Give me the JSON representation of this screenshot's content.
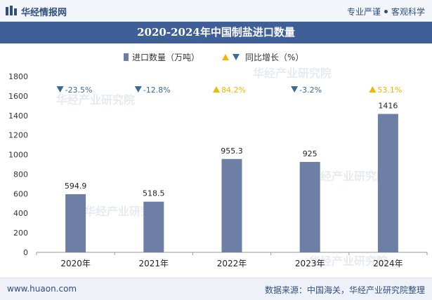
{
  "header": {
    "logo_text": "华经情报网",
    "tagline_left": "专业严谨",
    "tagline_right": "客观科学"
  },
  "watermark": "华经产业研究院",
  "footer": {
    "website": "www.huaon.com",
    "source": "数据来源：中国海关，华经产业研究院整理"
  },
  "colors": {
    "bar": "#6e7fa6",
    "title_band": "#3f5f98",
    "up_arrow": "#f2b705",
    "down_arrow": "#3a6a9a",
    "up_text": "#f2b705",
    "down_text": "#3a6a9a"
  },
  "chart_data": {
    "type": "bar",
    "title": "2020-2024年中国制盐进口数量",
    "categories": [
      "2020年",
      "2021年",
      "2022年",
      "2023年",
      "2024年"
    ],
    "series": [
      {
        "name": "进口数量（万吨）",
        "values": [
          594.9,
          518.5,
          955.3,
          925,
          1416
        ]
      },
      {
        "name": "同比增长（%）",
        "values": [
          -23.5,
          -12.8,
          84.2,
          -3.2,
          53.1
        ]
      }
    ],
    "value_labels": [
      "594.9",
      "518.5",
      "955.3",
      "925",
      "1416"
    ],
    "growth_labels": [
      "-23.5%",
      "-12.8%",
      "84.2%",
      "-3.2%",
      "53.1%"
    ],
    "y_ticks": [
      "0",
      "200",
      "400",
      "600",
      "800",
      "1000",
      "1200",
      "1400",
      "1600",
      "1800"
    ],
    "ylim": [
      0,
      1800
    ],
    "legend_position": "top-center",
    "grid": false
  }
}
